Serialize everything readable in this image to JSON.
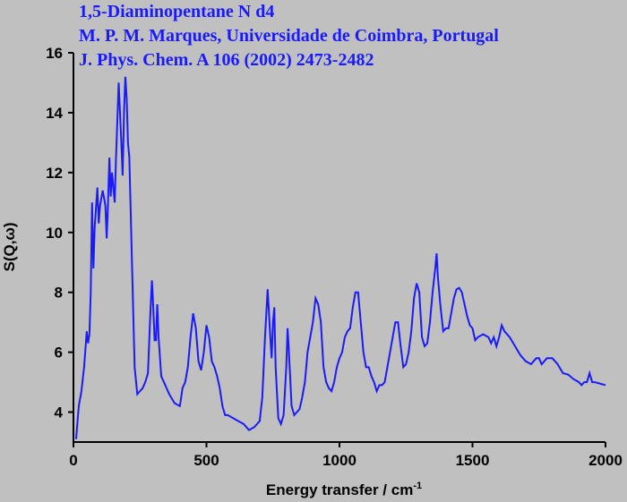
{
  "chart_data": {
    "type": "line",
    "title_lines": [
      "1,5-Diaminopentane N d4",
      "M. P. M. Marques, Universidade de Coimbra, Portugal",
      "J. Phys. Chem. A 106 (2002) 2473-2482"
    ],
    "xlabel": "Energy transfer / cm",
    "xlabel_sup": "-1",
    "ylabel": "S(Q,ω)",
    "xlim": [
      0,
      2000
    ],
    "ylim": [
      3,
      16
    ],
    "xticks": [
      0,
      500,
      1000,
      1500,
      2000
    ],
    "yticks": [
      4,
      6,
      8,
      10,
      12,
      14,
      16
    ],
    "series": [
      {
        "color": "#1a1aff",
        "x": [
          10,
          20,
          30,
          40,
          50,
          55,
          60,
          65,
          70,
          75,
          80,
          90,
          95,
          100,
          110,
          120,
          125,
          130,
          135,
          140,
          145,
          150,
          155,
          160,
          170,
          180,
          185,
          190,
          195,
          200,
          205,
          210,
          220,
          230,
          240,
          250,
          260,
          270,
          280,
          290,
          295,
          300,
          305,
          310,
          315,
          320,
          330,
          340,
          350,
          360,
          380,
          400,
          410,
          420,
          430,
          440,
          450,
          460,
          470,
          480,
          490,
          500,
          510,
          520,
          530,
          540,
          550,
          560,
          570,
          580,
          600,
          620,
          640,
          660,
          680,
          700,
          710,
          720,
          730,
          740,
          745,
          750,
          755,
          760,
          770,
          780,
          790,
          800,
          805,
          810,
          820,
          830,
          850,
          860,
          870,
          880,
          900,
          910,
          920,
          930,
          940,
          950,
          960,
          970,
          980,
          990,
          1000,
          1010,
          1020,
          1030,
          1040,
          1050,
          1060,
          1070,
          1080,
          1090,
          1100,
          1110,
          1120,
          1130,
          1140,
          1150,
          1160,
          1170,
          1180,
          1190,
          1200,
          1210,
          1220,
          1230,
          1240,
          1250,
          1260,
          1270,
          1280,
          1290,
          1300,
          1310,
          1320,
          1330,
          1340,
          1350,
          1360,
          1365,
          1370,
          1380,
          1390,
          1400,
          1410,
          1420,
          1430,
          1440,
          1450,
          1460,
          1470,
          1480,
          1490,
          1500,
          1510,
          1520,
          1540,
          1560,
          1570,
          1580,
          1590,
          1600,
          1610,
          1620,
          1640,
          1660,
          1680,
          1700,
          1720,
          1740,
          1750,
          1760,
          1780,
          1800,
          1820,
          1840,
          1860,
          1880,
          1900,
          1910,
          1920,
          1930,
          1940,
          1950,
          1960,
          1980,
          2000
        ],
        "values": [
          3.1,
          4.2,
          4.7,
          5.5,
          6.7,
          6.3,
          6.6,
          8.0,
          11.0,
          8.8,
          10.2,
          11.5,
          10.3,
          10.9,
          11.4,
          10.9,
          9.8,
          11.0,
          12.5,
          11.2,
          12.0,
          11.5,
          11.0,
          12.5,
          15.0,
          13.0,
          11.9,
          14.0,
          15.2,
          14.5,
          13.0,
          12.5,
          9.0,
          5.5,
          4.6,
          4.7,
          4.8,
          5.0,
          5.3,
          7.5,
          8.4,
          7.5,
          6.4,
          6.4,
          7.6,
          6.5,
          5.2,
          5.0,
          4.8,
          4.6,
          4.3,
          4.2,
          4.8,
          5.0,
          5.5,
          6.5,
          7.3,
          6.8,
          5.7,
          5.4,
          6.0,
          6.9,
          6.5,
          5.7,
          5.5,
          5.2,
          4.8,
          4.2,
          3.9,
          3.9,
          3.8,
          3.7,
          3.6,
          3.4,
          3.5,
          3.7,
          4.5,
          6.5,
          8.1,
          6.5,
          5.8,
          7.0,
          7.5,
          5.5,
          3.8,
          3.6,
          3.9,
          5.5,
          6.8,
          6.0,
          4.2,
          3.9,
          4.1,
          4.5,
          5.0,
          6.0,
          7.0,
          7.8,
          7.6,
          7.0,
          5.5,
          5.0,
          4.8,
          4.7,
          5.0,
          5.5,
          5.8,
          6.0,
          6.5,
          6.7,
          6.8,
          7.5,
          8.0,
          8.0,
          7.0,
          6.0,
          5.5,
          5.5,
          5.2,
          5.0,
          4.7,
          4.9,
          4.9,
          5.0,
          5.5,
          6.0,
          6.5,
          7.0,
          7.0,
          6.2,
          5.5,
          5.6,
          6.0,
          6.7,
          7.8,
          8.3,
          8.0,
          6.5,
          6.2,
          6.3,
          7.0,
          8.0,
          8.8,
          9.3,
          8.5,
          7.5,
          6.7,
          6.8,
          6.8,
          7.3,
          7.8,
          8.1,
          8.15,
          8.0,
          7.6,
          7.2,
          6.9,
          6.8,
          6.4,
          6.5,
          6.6,
          6.5,
          6.3,
          6.5,
          6.2,
          6.5,
          6.9,
          6.7,
          6.5,
          6.2,
          5.9,
          5.7,
          5.6,
          5.8,
          5.8,
          5.6,
          5.8,
          5.8,
          5.6,
          5.3,
          5.25,
          5.1,
          5.0,
          4.9,
          5.0,
          5.0,
          5.3,
          5.0,
          5.0,
          4.95,
          4.9
        ]
      }
    ]
  }
}
